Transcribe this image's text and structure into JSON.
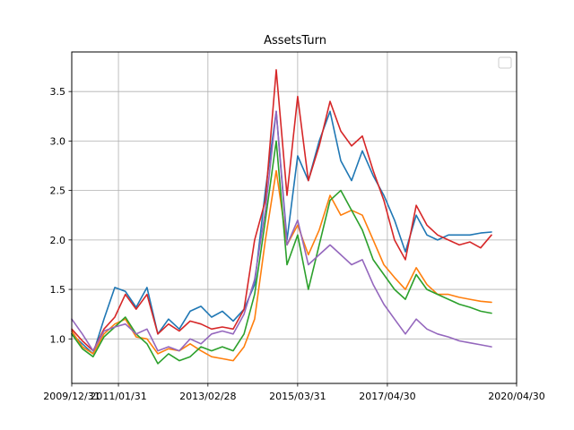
{
  "chart_data": {
    "type": "line",
    "title": "AssetsTurn",
    "xlabel": "",
    "ylabel": "",
    "x_start": "2009-12-31",
    "x_end": "2020-04-30",
    "x_ticks": [
      {
        "label": "2009/12/31",
        "date": "2009-12-31"
      },
      {
        "label": "2011/01/31",
        "date": "2011-01-31"
      },
      {
        "label": "2013/02/28",
        "date": "2013-02-28"
      },
      {
        "label": "2015/03/31",
        "date": "2015-03-31"
      },
      {
        "label": "2017/04/30",
        "date": "2017-04-30"
      },
      {
        "label": "2020/04/30",
        "date": "2020-04-30"
      }
    ],
    "ylim": [
      0.55,
      3.9
    ],
    "y_ticks": [
      1.0,
      1.5,
      2.0,
      2.5,
      3.0,
      3.5
    ],
    "y_tick_labels": [
      "1.0",
      "1.5",
      "2.0",
      "2.5",
      "3.0",
      "3.5"
    ],
    "grid": true,
    "legend": {
      "placement": "top-right",
      "entries": []
    },
    "series": [
      {
        "color": "#1f77b4",
        "points": [
          [
            "2009-12-31",
            1.05
          ],
          [
            "2010-03-31",
            0.95
          ],
          [
            "2010-06-30",
            0.85
          ],
          [
            "2010-09-30",
            1.2
          ],
          [
            "2010-12-31",
            1.52
          ],
          [
            "2011-03-31",
            1.48
          ],
          [
            "2011-06-30",
            1.32
          ],
          [
            "2011-09-30",
            1.52
          ],
          [
            "2011-12-31",
            1.05
          ],
          [
            "2012-03-31",
            1.2
          ],
          [
            "2012-06-30",
            1.1
          ],
          [
            "2012-09-30",
            1.28
          ],
          [
            "2012-12-31",
            1.33
          ],
          [
            "2013-03-31",
            1.22
          ],
          [
            "2013-06-30",
            1.28
          ],
          [
            "2013-09-30",
            1.18
          ],
          [
            "2013-12-31",
            1.3
          ],
          [
            "2014-03-31",
            1.55
          ],
          [
            "2014-06-30",
            2.5
          ],
          [
            "2014-09-30",
            3.3
          ],
          [
            "2014-12-31",
            2.0
          ],
          [
            "2015-03-31",
            2.85
          ],
          [
            "2015-06-30",
            2.6
          ],
          [
            "2015-09-30",
            3.0
          ],
          [
            "2015-12-31",
            3.3
          ],
          [
            "2016-03-31",
            2.8
          ],
          [
            "2016-06-30",
            2.6
          ],
          [
            "2016-09-30",
            2.9
          ],
          [
            "2016-12-31",
            2.65
          ],
          [
            "2017-03-31",
            2.45
          ],
          [
            "2017-06-30",
            2.2
          ],
          [
            "2017-09-30",
            1.88
          ],
          [
            "2017-12-31",
            2.25
          ],
          [
            "2018-03-31",
            2.05
          ],
          [
            "2018-06-30",
            2.0
          ],
          [
            "2018-09-30",
            2.05
          ],
          [
            "2018-12-31",
            2.05
          ],
          [
            "2019-03-31",
            2.05
          ],
          [
            "2019-06-30",
            2.07
          ],
          [
            "2019-09-30",
            2.08
          ]
        ]
      },
      {
        "color": "#ff7f0e",
        "points": [
          [
            "2009-12-31",
            1.08
          ],
          [
            "2010-03-31",
            0.92
          ],
          [
            "2010-06-30",
            0.85
          ],
          [
            "2010-09-30",
            1.05
          ],
          [
            "2010-12-31",
            1.15
          ],
          [
            "2011-03-31",
            1.2
          ],
          [
            "2011-06-30",
            1.02
          ],
          [
            "2011-09-30",
            1.0
          ],
          [
            "2011-12-31",
            0.85
          ],
          [
            "2012-03-31",
            0.9
          ],
          [
            "2012-06-30",
            0.88
          ],
          [
            "2012-09-30",
            0.95
          ],
          [
            "2012-12-31",
            0.88
          ],
          [
            "2013-03-31",
            0.82
          ],
          [
            "2013-06-30",
            0.8
          ],
          [
            "2013-09-30",
            0.78
          ],
          [
            "2013-12-31",
            0.92
          ],
          [
            "2014-03-31",
            1.2
          ],
          [
            "2014-06-30",
            2.0
          ],
          [
            "2014-09-30",
            2.7
          ],
          [
            "2014-12-31",
            1.95
          ],
          [
            "2015-03-31",
            2.15
          ],
          [
            "2015-06-30",
            1.85
          ],
          [
            "2015-09-30",
            2.1
          ],
          [
            "2015-12-31",
            2.45
          ],
          [
            "2016-03-31",
            2.25
          ],
          [
            "2016-06-30",
            2.3
          ],
          [
            "2016-09-30",
            2.25
          ],
          [
            "2016-12-31",
            2.0
          ],
          [
            "2017-03-31",
            1.75
          ],
          [
            "2017-06-30",
            1.62
          ],
          [
            "2017-09-30",
            1.5
          ],
          [
            "2017-12-31",
            1.72
          ],
          [
            "2018-03-31",
            1.55
          ],
          [
            "2018-06-30",
            1.45
          ],
          [
            "2018-09-30",
            1.45
          ],
          [
            "2018-12-31",
            1.42
          ],
          [
            "2019-03-31",
            1.4
          ],
          [
            "2019-06-30",
            1.38
          ],
          [
            "2019-09-30",
            1.37
          ]
        ]
      },
      {
        "color": "#2ca02c",
        "points": [
          [
            "2009-12-31",
            1.05
          ],
          [
            "2010-03-31",
            0.9
          ],
          [
            "2010-06-30",
            0.82
          ],
          [
            "2010-09-30",
            1.02
          ],
          [
            "2010-12-31",
            1.12
          ],
          [
            "2011-03-31",
            1.22
          ],
          [
            "2011-06-30",
            1.05
          ],
          [
            "2011-09-30",
            0.95
          ],
          [
            "2011-12-31",
            0.75
          ],
          [
            "2012-03-31",
            0.85
          ],
          [
            "2012-06-30",
            0.78
          ],
          [
            "2012-09-30",
            0.82
          ],
          [
            "2012-12-31",
            0.92
          ],
          [
            "2013-03-31",
            0.88
          ],
          [
            "2013-06-30",
            0.92
          ],
          [
            "2013-09-30",
            0.88
          ],
          [
            "2013-12-31",
            1.05
          ],
          [
            "2014-03-31",
            1.45
          ],
          [
            "2014-06-30",
            2.2
          ],
          [
            "2014-09-30",
            3.0
          ],
          [
            "2014-12-31",
            1.75
          ],
          [
            "2015-03-31",
            2.05
          ],
          [
            "2015-06-30",
            1.5
          ],
          [
            "2015-09-30",
            1.95
          ],
          [
            "2015-12-31",
            2.4
          ],
          [
            "2016-03-31",
            2.5
          ],
          [
            "2016-06-30",
            2.3
          ],
          [
            "2016-09-30",
            2.1
          ],
          [
            "2016-12-31",
            1.8
          ],
          [
            "2017-03-31",
            1.65
          ],
          [
            "2017-06-30",
            1.5
          ],
          [
            "2017-09-30",
            1.4
          ],
          [
            "2017-12-31",
            1.65
          ],
          [
            "2018-03-31",
            1.5
          ],
          [
            "2018-06-30",
            1.45
          ],
          [
            "2018-09-30",
            1.4
          ],
          [
            "2018-12-31",
            1.35
          ],
          [
            "2019-03-31",
            1.32
          ],
          [
            "2019-06-30",
            1.28
          ],
          [
            "2019-09-30",
            1.26
          ]
        ]
      },
      {
        "color": "#d62728",
        "points": [
          [
            "2009-12-31",
            1.1
          ],
          [
            "2010-03-31",
            0.98
          ],
          [
            "2010-06-30",
            0.88
          ],
          [
            "2010-09-30",
            1.1
          ],
          [
            "2010-12-31",
            1.22
          ],
          [
            "2011-03-31",
            1.45
          ],
          [
            "2011-06-30",
            1.3
          ],
          [
            "2011-09-30",
            1.45
          ],
          [
            "2011-12-31",
            1.05
          ],
          [
            "2012-03-31",
            1.15
          ],
          [
            "2012-06-30",
            1.08
          ],
          [
            "2012-09-30",
            1.18
          ],
          [
            "2012-12-31",
            1.15
          ],
          [
            "2013-03-31",
            1.1
          ],
          [
            "2013-06-30",
            1.12
          ],
          [
            "2013-09-30",
            1.1
          ],
          [
            "2013-12-31",
            1.3
          ],
          [
            "2014-03-31",
            2.0
          ],
          [
            "2014-06-30",
            2.4
          ],
          [
            "2014-09-30",
            3.72
          ],
          [
            "2014-12-31",
            2.45
          ],
          [
            "2015-03-31",
            3.45
          ],
          [
            "2015-06-30",
            2.6
          ],
          [
            "2015-09-30",
            2.95
          ],
          [
            "2015-12-31",
            3.4
          ],
          [
            "2016-03-31",
            3.1
          ],
          [
            "2016-06-30",
            2.95
          ],
          [
            "2016-09-30",
            3.05
          ],
          [
            "2016-12-31",
            2.7
          ],
          [
            "2017-03-31",
            2.4
          ],
          [
            "2017-06-30",
            2.0
          ],
          [
            "2017-09-30",
            1.8
          ],
          [
            "2017-12-31",
            2.35
          ],
          [
            "2018-03-31",
            2.15
          ],
          [
            "2018-06-30",
            2.05
          ],
          [
            "2018-09-30",
            2.0
          ],
          [
            "2018-12-31",
            1.95
          ],
          [
            "2019-03-31",
            1.98
          ],
          [
            "2019-06-30",
            1.92
          ],
          [
            "2019-09-30",
            2.05
          ]
        ]
      },
      {
        "color": "#9467bd",
        "points": [
          [
            "2009-12-31",
            1.2
          ],
          [
            "2010-03-31",
            1.05
          ],
          [
            "2010-06-30",
            0.88
          ],
          [
            "2010-09-30",
            1.08
          ],
          [
            "2010-12-31",
            1.12
          ],
          [
            "2011-03-31",
            1.15
          ],
          [
            "2011-06-30",
            1.05
          ],
          [
            "2011-09-30",
            1.1
          ],
          [
            "2011-12-31",
            0.88
          ],
          [
            "2012-03-31",
            0.92
          ],
          [
            "2012-06-30",
            0.88
          ],
          [
            "2012-09-30",
            1.0
          ],
          [
            "2012-12-31",
            0.95
          ],
          [
            "2013-03-31",
            1.05
          ],
          [
            "2013-06-30",
            1.08
          ],
          [
            "2013-09-30",
            1.05
          ],
          [
            "2013-12-31",
            1.25
          ],
          [
            "2014-03-31",
            1.6
          ],
          [
            "2014-06-30",
            2.3
          ],
          [
            "2014-09-30",
            3.3
          ],
          [
            "2014-12-31",
            1.95
          ],
          [
            "2015-03-31",
            2.2
          ],
          [
            "2015-06-30",
            1.75
          ],
          [
            "2015-09-30",
            1.85
          ],
          [
            "2015-12-31",
            1.95
          ],
          [
            "2016-03-31",
            1.85
          ],
          [
            "2016-06-30",
            1.75
          ],
          [
            "2016-09-30",
            1.8
          ],
          [
            "2016-12-31",
            1.55
          ],
          [
            "2017-03-31",
            1.35
          ],
          [
            "2017-06-30",
            1.2
          ],
          [
            "2017-09-30",
            1.05
          ],
          [
            "2017-12-31",
            1.2
          ],
          [
            "2018-03-31",
            1.1
          ],
          [
            "2018-06-30",
            1.05
          ],
          [
            "2018-09-30",
            1.02
          ],
          [
            "2018-12-31",
            0.98
          ],
          [
            "2019-03-31",
            0.96
          ],
          [
            "2019-06-30",
            0.94
          ],
          [
            "2019-09-30",
            0.92
          ]
        ]
      }
    ]
  }
}
